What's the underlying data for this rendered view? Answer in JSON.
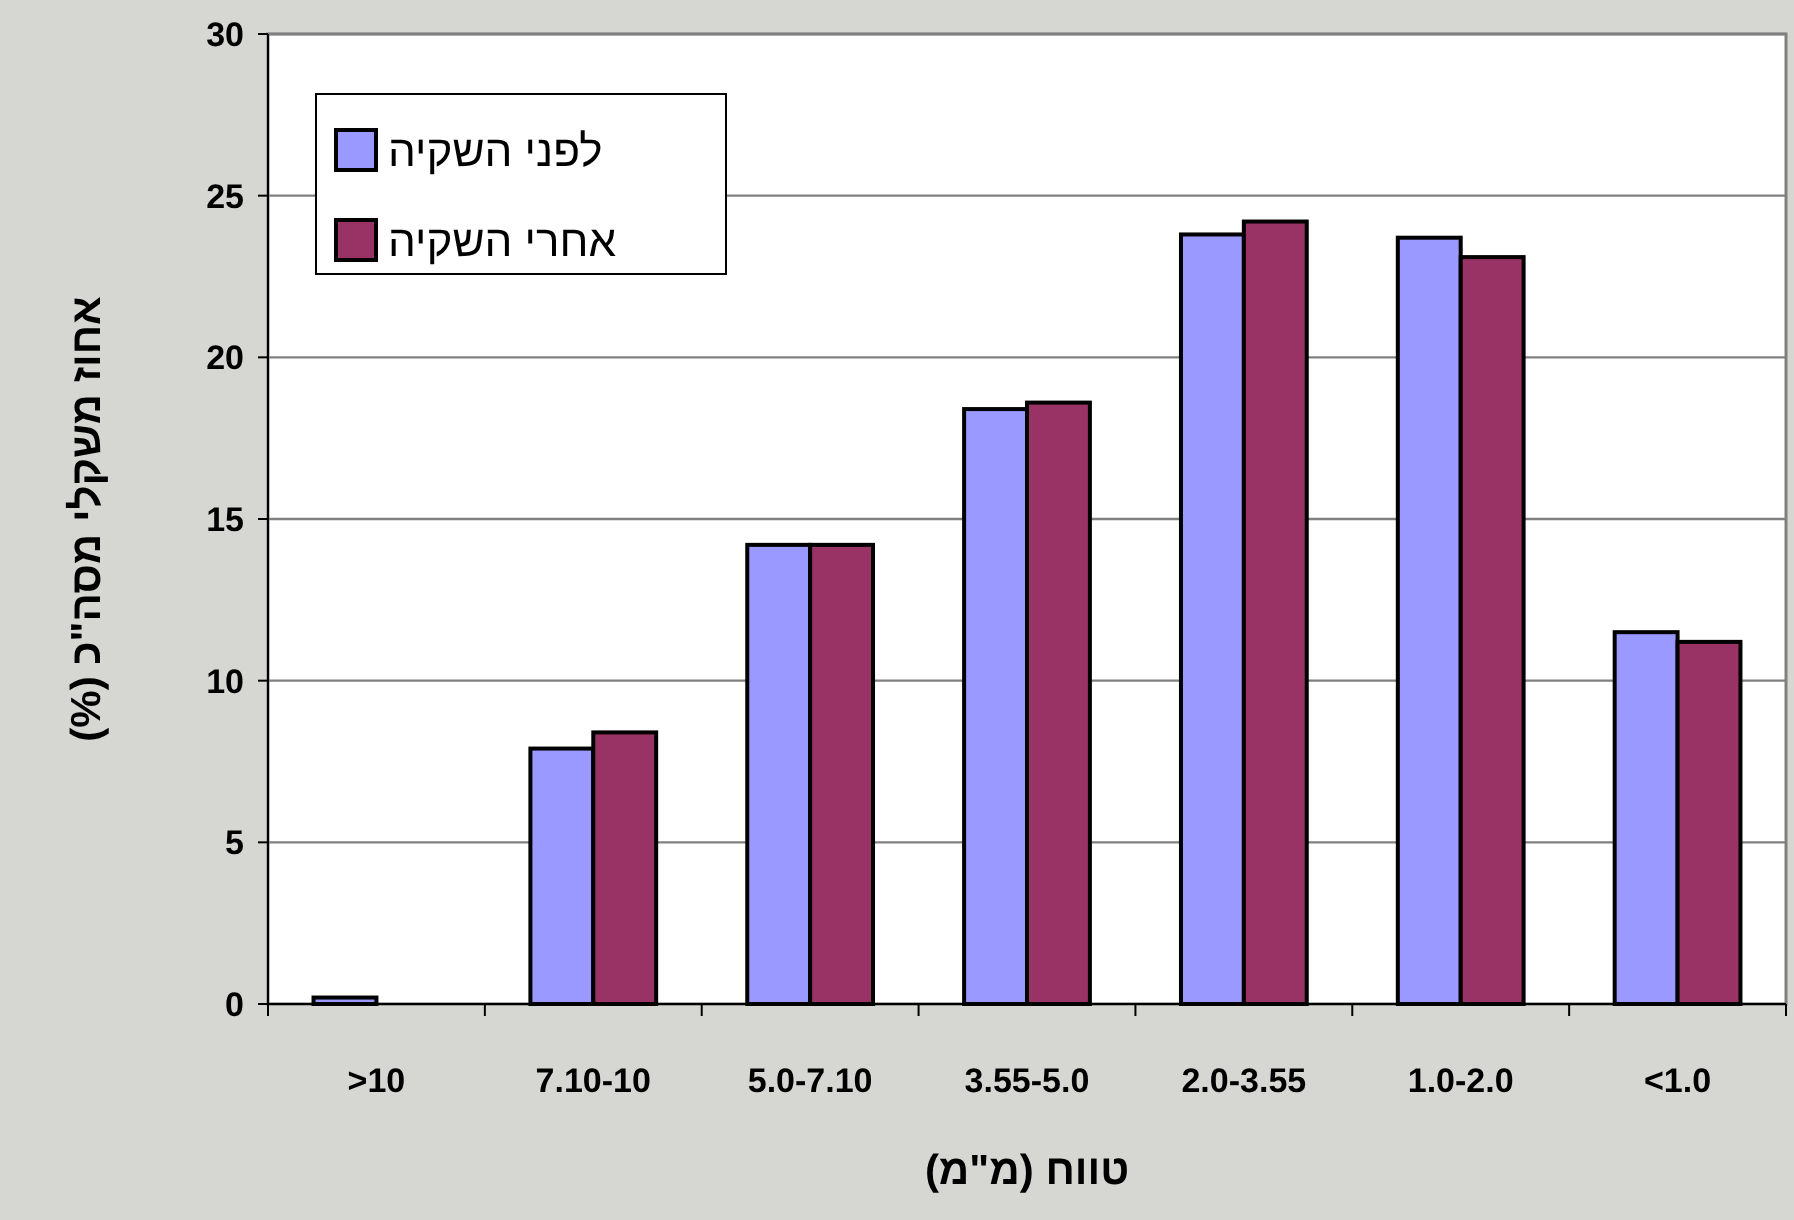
{
  "chart_data": {
    "type": "bar",
    "xlabel": "טווח (מ\"מ)",
    "ylabel": "אחוז משקלי מסה\"כ (%)",
    "categories": [
      ">10",
      "7.10-10",
      "5.0-7.10",
      "3.55-5.0",
      "2.0-3.55",
      "1.0-2.0",
      "<1.0"
    ],
    "series": [
      {
        "name": "לפני השקיה",
        "color": "#9999ff",
        "values": [
          0.2,
          7.9,
          14.2,
          18.4,
          23.8,
          23.7,
          11.5
        ]
      },
      {
        "name": "אחרי השקיה",
        "color": "#993366",
        "values": [
          0,
          8.4,
          14.2,
          18.6,
          24.2,
          23.1,
          11.2
        ]
      }
    ],
    "ylim": [
      0,
      30
    ],
    "yticks": [
      0,
      5,
      10,
      15,
      20,
      25,
      30
    ],
    "grid": "y",
    "legend": "top left"
  }
}
